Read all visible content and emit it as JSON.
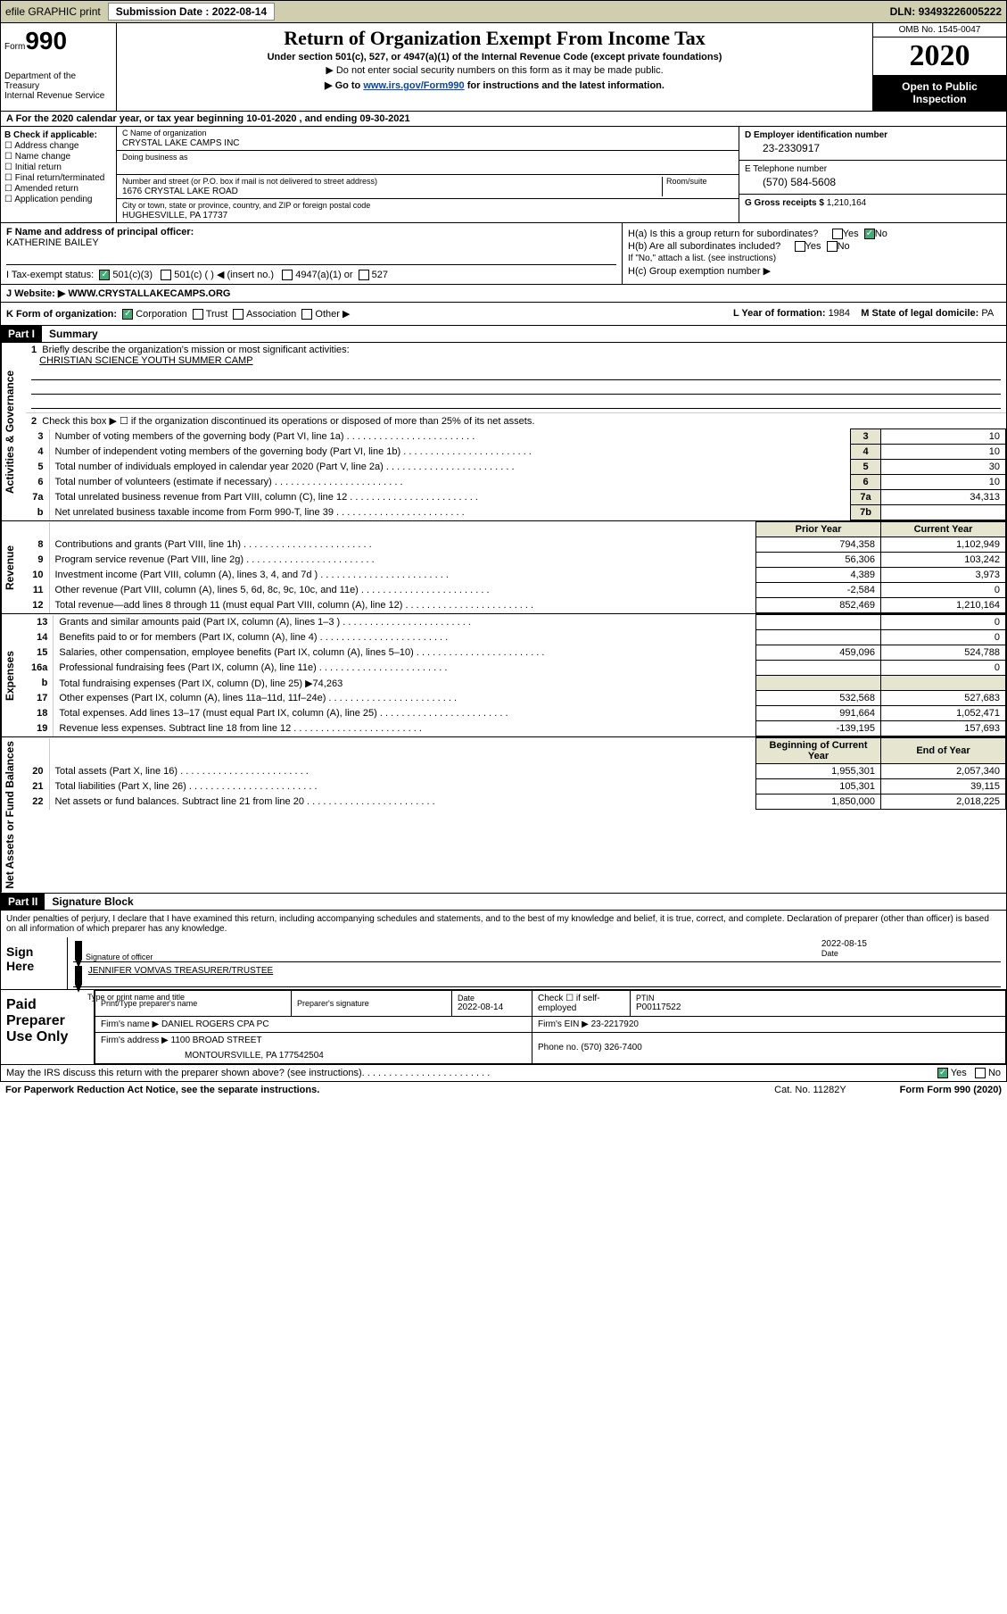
{
  "header": {
    "efile": "efile GRAPHIC print",
    "submission_label": "Submission Date : ",
    "submission_date": "2022-08-14",
    "dln_label": "DLN: ",
    "dln": "93493226005222"
  },
  "formtop": {
    "form_label": "Form",
    "form_number": "990",
    "dept": "Department of the Treasury\nInternal Revenue Service",
    "title": "Return of Organization Exempt From Income Tax",
    "subtitle": "Under section 501(c), 527, or 4947(a)(1) of the Internal Revenue Code (except private foundations)",
    "note1": "▶ Do not enter social security numbers on this form as it may be made public.",
    "note2_prefix": "▶ Go to ",
    "note2_link": "www.irs.gov/Form990",
    "note2_suffix": " for instructions and the latest information.",
    "omb": "OMB No. 1545-0047",
    "year": "2020",
    "open": "Open to Public Inspection"
  },
  "sectionA": "A For the 2020 calendar year, or tax year beginning 10-01-2020   , and ending 09-30-2021",
  "blockB": {
    "title": "B Check if applicable:",
    "items": [
      "Address change",
      "Name change",
      "Initial return",
      "Final return/terminated",
      "Amended return",
      "Application pending"
    ]
  },
  "blockC": {
    "name_label": "C Name of organization",
    "name": "CRYSTAL LAKE CAMPS INC",
    "dba_label": "Doing business as",
    "addr_label": "Number and street (or P.O. box if mail is not delivered to street address)",
    "room_label": "Room/suite",
    "addr": "1676 CRYSTAL LAKE ROAD",
    "city_label": "City or town, state or province, country, and ZIP or foreign postal code",
    "city": "HUGHESVILLE, PA  17737"
  },
  "blockD": {
    "label": "D Employer identification number",
    "value": "23-2330917"
  },
  "blockE": {
    "label": "E Telephone number",
    "value": "(570) 584-5608"
  },
  "blockG": {
    "label": "G Gross receipts $ ",
    "value": "1,210,164"
  },
  "blockF": {
    "label": "F  Name and address of principal officer:",
    "name": "KATHERINE BAILEY"
  },
  "blockH": {
    "ha": "H(a)  Is this a group return for subordinates?",
    "hb": "H(b)  Are all subordinates included?",
    "hb_note": "If \"No,\" attach a list. (see instructions)",
    "hc": "H(c)  Group exemption number ▶",
    "yes": "Yes",
    "no": "No"
  },
  "taxexempt": {
    "label": "I  Tax-exempt status:",
    "opt1": "501(c)(3)",
    "opt2": "501(c) (  ) ◀ (insert no.)",
    "opt3": "4947(a)(1) or",
    "opt4": "527"
  },
  "website": {
    "label": "J  Website: ▶  ",
    "url": "WWW.CRYSTALLAKECAMPS.ORG"
  },
  "kform": {
    "label": "K Form of organization:",
    "corp": "Corporation",
    "trust": "Trust",
    "assoc": "Association",
    "other": "Other ▶",
    "year_label": "L Year of formation: ",
    "year": "1984",
    "state_label": "M State of legal domicile: ",
    "state": "PA"
  },
  "part1": {
    "hdr": "Part I",
    "title": "Summary"
  },
  "summary": {
    "gov_label": "Activities & Governance",
    "rev_label": "Revenue",
    "exp_label": "Expenses",
    "net_label": "Net Assets or Fund Balances",
    "q1": "Briefly describe the organization's mission or most significant activities:",
    "mission": "CHRISTIAN SCIENCE YOUTH SUMMER CAMP",
    "q2": "Check this box ▶ ☐ if the organization discontinued its operations or disposed of more than 25% of its net assets.",
    "rows_gov": [
      {
        "n": "3",
        "t": "Number of voting members of the governing body (Part VI, line 1a)",
        "b": "3",
        "v": "10"
      },
      {
        "n": "4",
        "t": "Number of independent voting members of the governing body (Part VI, line 1b)",
        "b": "4",
        "v": "10"
      },
      {
        "n": "5",
        "t": "Total number of individuals employed in calendar year 2020 (Part V, line 2a)",
        "b": "5",
        "v": "30"
      },
      {
        "n": "6",
        "t": "Total number of volunteers (estimate if necessary)",
        "b": "6",
        "v": "10"
      },
      {
        "n": "7a",
        "t": "Total unrelated business revenue from Part VIII, column (C), line 12",
        "b": "7a",
        "v": "34,313"
      },
      {
        "n": "b",
        "t": "Net unrelated business taxable income from Form 990-T, line 39",
        "b": "7b",
        "v": ""
      }
    ],
    "hdr_prior": "Prior Year",
    "hdr_current": "Current Year",
    "rows_rev": [
      {
        "n": "8",
        "t": "Contributions and grants (Part VIII, line 1h)",
        "p": "794,358",
        "c": "1,102,949"
      },
      {
        "n": "9",
        "t": "Program service revenue (Part VIII, line 2g)",
        "p": "56,306",
        "c": "103,242"
      },
      {
        "n": "10",
        "t": "Investment income (Part VIII, column (A), lines 3, 4, and 7d )",
        "p": "4,389",
        "c": "3,973"
      },
      {
        "n": "11",
        "t": "Other revenue (Part VIII, column (A), lines 5, 6d, 8c, 9c, 10c, and 11e)",
        "p": "-2,584",
        "c": "0"
      },
      {
        "n": "12",
        "t": "Total revenue—add lines 8 through 11 (must equal Part VIII, column (A), line 12)",
        "p": "852,469",
        "c": "1,210,164"
      }
    ],
    "rows_exp": [
      {
        "n": "13",
        "t": "Grants and similar amounts paid (Part IX, column (A), lines 1–3 )",
        "p": "",
        "c": "0"
      },
      {
        "n": "14",
        "t": "Benefits paid to or for members (Part IX, column (A), line 4)",
        "p": "",
        "c": "0"
      },
      {
        "n": "15",
        "t": "Salaries, other compensation, employee benefits (Part IX, column (A), lines 5–10)",
        "p": "459,096",
        "c": "524,788"
      },
      {
        "n": "16a",
        "t": "Professional fundraising fees (Part IX, column (A), line 11e)",
        "p": "",
        "c": "0"
      },
      {
        "n": "b",
        "t": "Total fundraising expenses (Part IX, column (D), line 25) ▶74,263",
        "p": "",
        "c": "",
        "shaded": true
      },
      {
        "n": "17",
        "t": "Other expenses (Part IX, column (A), lines 11a–11d, 11f–24e)",
        "p": "532,568",
        "c": "527,683"
      },
      {
        "n": "18",
        "t": "Total expenses. Add lines 13–17 (must equal Part IX, column (A), line 25)",
        "p": "991,664",
        "c": "1,052,471"
      },
      {
        "n": "19",
        "t": "Revenue less expenses. Subtract line 18 from line 12",
        "p": "-139,195",
        "c": "157,693"
      }
    ],
    "hdr_begin": "Beginning of Current Year",
    "hdr_end": "End of Year",
    "rows_net": [
      {
        "n": "20",
        "t": "Total assets (Part X, line 16)",
        "p": "1,955,301",
        "c": "2,057,340"
      },
      {
        "n": "21",
        "t": "Total liabilities (Part X, line 26)",
        "p": "105,301",
        "c": "39,115"
      },
      {
        "n": "22",
        "t": "Net assets or fund balances. Subtract line 21 from line 20",
        "p": "1,850,000",
        "c": "2,018,225"
      }
    ]
  },
  "part2": {
    "hdr": "Part II",
    "title": "Signature Block"
  },
  "sig": {
    "declaration": "Under penalties of perjury, I declare that I have examined this return, including accompanying schedules and statements, and to the best of my knowledge and belief, it is true, correct, and complete. Declaration of preparer (other than officer) is based on all information of which preparer has any knowledge.",
    "sign_here": "Sign Here",
    "sig_officer": "Signature of officer",
    "sig_date": "2022-08-15",
    "date_label": "Date",
    "officer_name": "JENNIFER VOMVAS  TREASURER/TRUSTEE",
    "type_label": "Type or print name and title"
  },
  "paid": {
    "title": "Paid Preparer Use Only",
    "h_name": "Print/Type preparer's name",
    "h_sig": "Preparer's signature",
    "h_date": "Date",
    "date": "2022-08-14",
    "h_check": "Check ☐ if self-employed",
    "h_ptin": "PTIN",
    "ptin": "P00117522",
    "firm_name_label": "Firm's name    ▶",
    "firm_name": "DANIEL ROGERS CPA PC",
    "firm_ein_label": "Firm's EIN ▶",
    "firm_ein": "23-2217920",
    "firm_addr_label": "Firm's address ▶",
    "firm_addr": "1100 BROAD STREET",
    "firm_city": "MONTOURSVILLE, PA  177542504",
    "phone_label": "Phone no.",
    "phone": "(570) 326-7400"
  },
  "discuss": {
    "text": "May the IRS discuss this return with the preparer shown above? (see instructions)",
    "yes": "Yes",
    "no": "No"
  },
  "footer": {
    "paperwork": "For Paperwork Reduction Act Notice, see the separate instructions.",
    "cat": "Cat. No. 11282Y",
    "form": "Form 990 (2020)"
  }
}
